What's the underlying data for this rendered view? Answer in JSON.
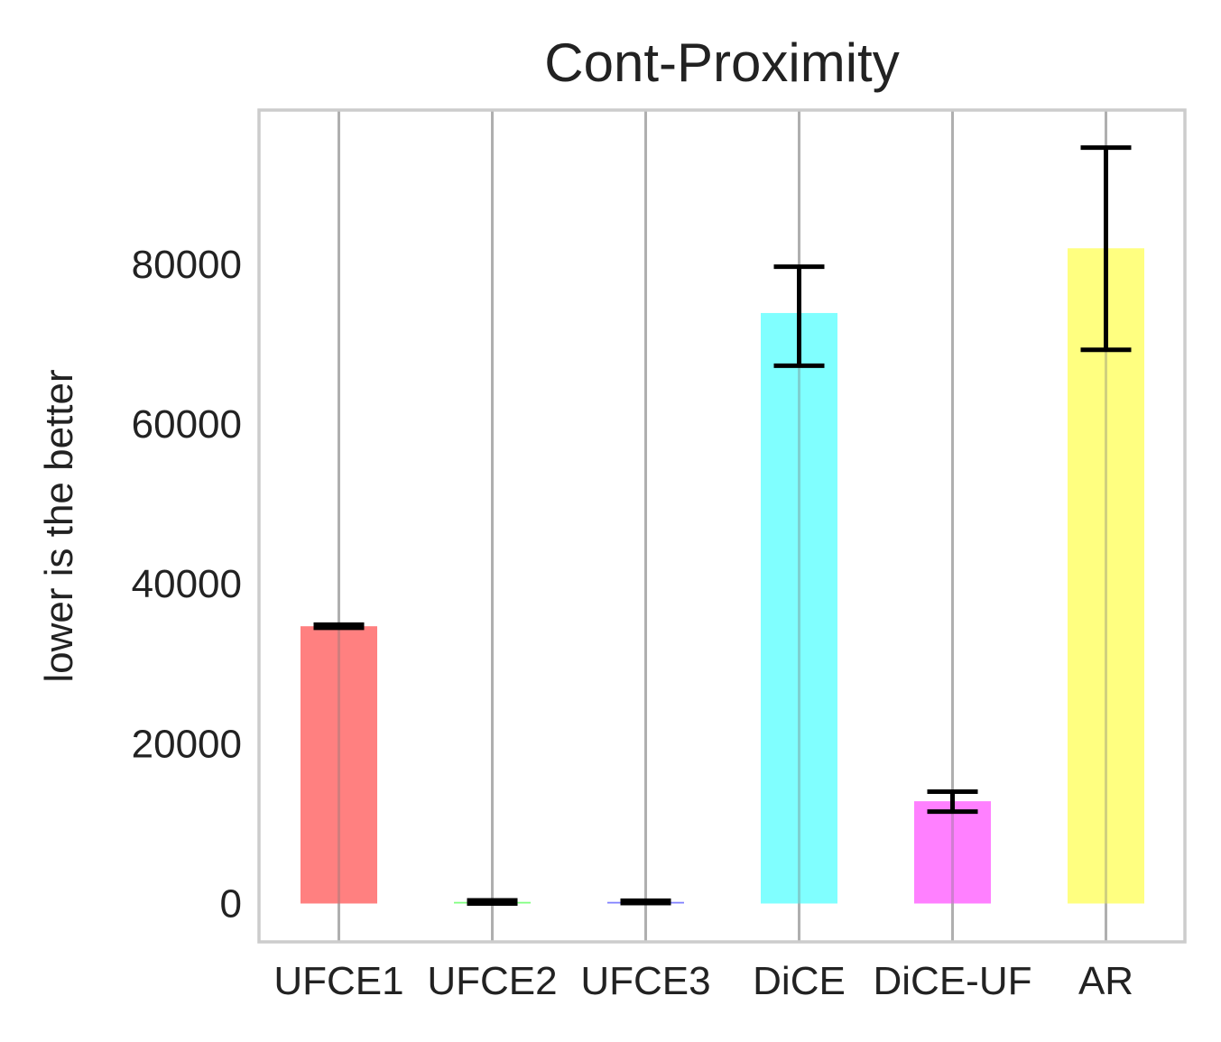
{
  "chart_data": {
    "type": "bar",
    "title": "Cont-Proximity",
    "xlabel": "",
    "ylabel": "lower is the better",
    "categories": [
      "UFCE1",
      "UFCE2",
      "UFCE3",
      "DiCE",
      "DiCE-UF",
      "AR"
    ],
    "values": [
      34700,
      200,
      200,
      73900,
      12800,
      82000
    ],
    "errors": [
      [
        34500,
        34900
      ],
      [
        0,
        400
      ],
      [
        50,
        350
      ],
      [
        67300,
        79700
      ],
      [
        11500,
        14000
      ],
      [
        69300,
        94600
      ]
    ],
    "colors": [
      "#ff8080",
      "#80ff80",
      "#8080ff",
      "#80ffff",
      "#ff80ff",
      "#ffff80"
    ],
    "y_ticks": [
      0,
      20000,
      40000,
      60000,
      80000
    ],
    "ylim": [
      -4800,
      99300
    ],
    "grid": true,
    "legend": "none"
  }
}
